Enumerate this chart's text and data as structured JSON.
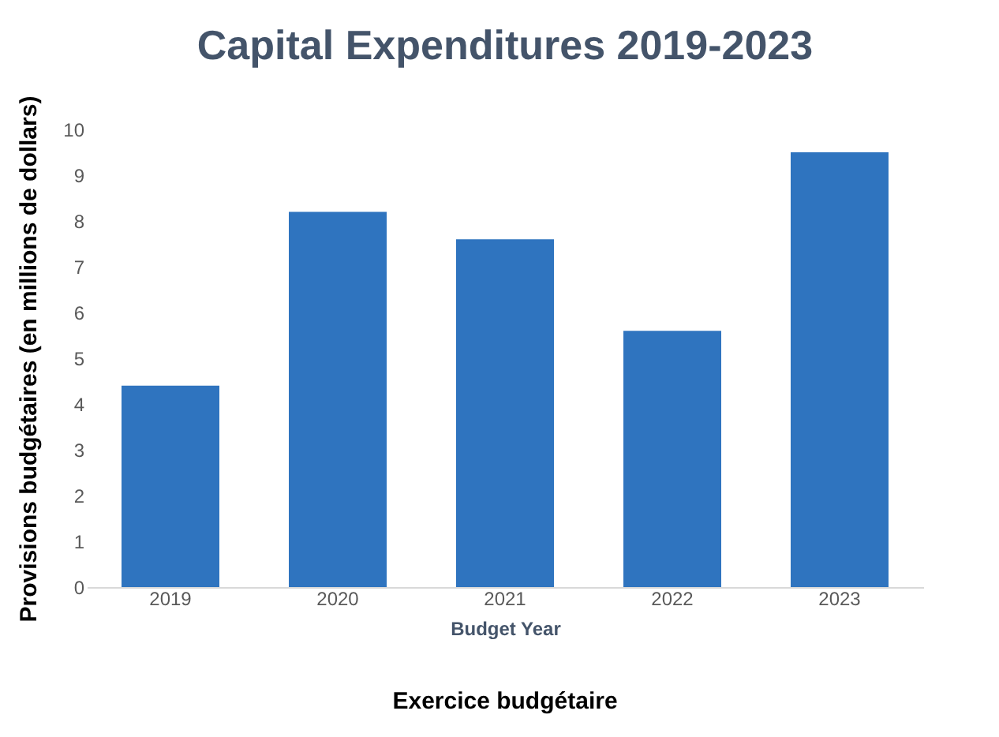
{
  "chart_data": {
    "type": "bar",
    "title": "Capital Expenditures 2019-2023",
    "xlabel": "Budget Year",
    "ylabel": "Provisions budgétaires (en millions de dollars)",
    "categories": [
      "2019",
      "2020",
      "2021",
      "2022",
      "2023"
    ],
    "values": [
      4.4,
      8.2,
      7.6,
      5.6,
      9.5
    ],
    "color": "#2f74bf",
    "ylim": [
      0,
      10
    ],
    "yticks": [
      0,
      1,
      2,
      3,
      4,
      5,
      6,
      7,
      8,
      9,
      10
    ],
    "grid": false,
    "annotations": [
      "Exercice budgétaire"
    ]
  }
}
